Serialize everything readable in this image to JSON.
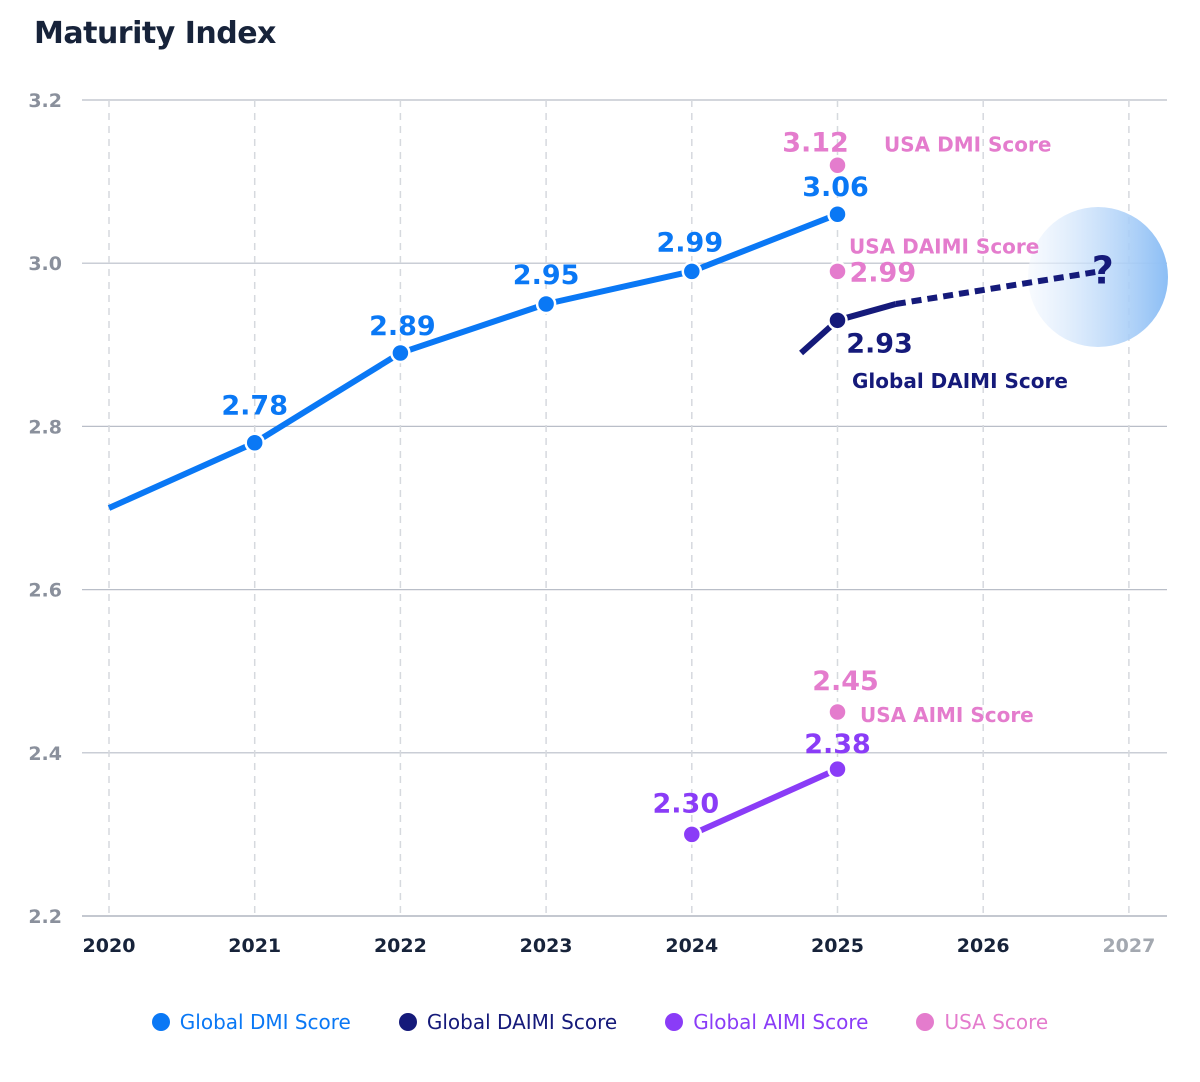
{
  "chart_data": {
    "type": "line",
    "title": "Maturity Index",
    "xlabel": "",
    "ylabel": "",
    "ylim": [
      2.2,
      3.2
    ],
    "xlim": [
      2020,
      2027
    ],
    "y_ticks": [
      "3.2",
      "3.0",
      "2.8",
      "2.6",
      "2.4",
      "2.2"
    ],
    "x_ticks": [
      "2020",
      "2021",
      "2022",
      "2023",
      "2024",
      "2025",
      "2026",
      "2027"
    ],
    "grid": true,
    "legend_placement": "bottom-center",
    "series": [
      {
        "name": "Global DMI Score",
        "color": "#0a78f5",
        "x": [
          2020,
          2021,
          2022,
          2023,
          2024,
          2025
        ],
        "values": [
          2.7,
          2.78,
          2.89,
          2.95,
          2.99,
          3.06
        ],
        "labels": [
          "",
          "2.78",
          "2.89",
          "2.95",
          "2.99",
          "3.06"
        ]
      },
      {
        "name": "Global DAIMI Score",
        "color": "#151a7a",
        "x": [
          2024.75,
          2025,
          2025.4
        ],
        "values": [
          2.89,
          2.93,
          2.95
        ],
        "labels": [
          "",
          "2.93",
          ""
        ],
        "annotation": "Global DAIMI Score",
        "projection": {
          "x": [
            2025.4,
            2026.8
          ],
          "values": [
            2.95,
            2.99
          ],
          "marker": "?"
        }
      },
      {
        "name": "Global AIMI Score",
        "color": "#8a3cf7",
        "x": [
          2024,
          2025
        ],
        "values": [
          2.3,
          2.38
        ],
        "labels": [
          "2.30",
          "2.38"
        ]
      }
    ],
    "usa_points": [
      {
        "name": "USA DMI Score",
        "x": 2025,
        "value": 3.12,
        "label": "3.12",
        "color": "#e47ccd"
      },
      {
        "name": "USA DAIMI Score",
        "x": 2025,
        "value": 2.99,
        "label": "2.99",
        "color": "#e47ccd"
      },
      {
        "name": "USA AIMI Score",
        "x": 2025,
        "value": 2.45,
        "label": "2.45",
        "color": "#e47ccd"
      }
    ],
    "legend": [
      {
        "label": "Global DMI Score",
        "color": "#0a78f5"
      },
      {
        "label": "Global DAIMI Score",
        "color": "#151a7a"
      },
      {
        "label": "Global AIMI Score",
        "color": "#8a3cf7"
      },
      {
        "label": "USA Score",
        "color": "#e47ccd"
      }
    ]
  }
}
